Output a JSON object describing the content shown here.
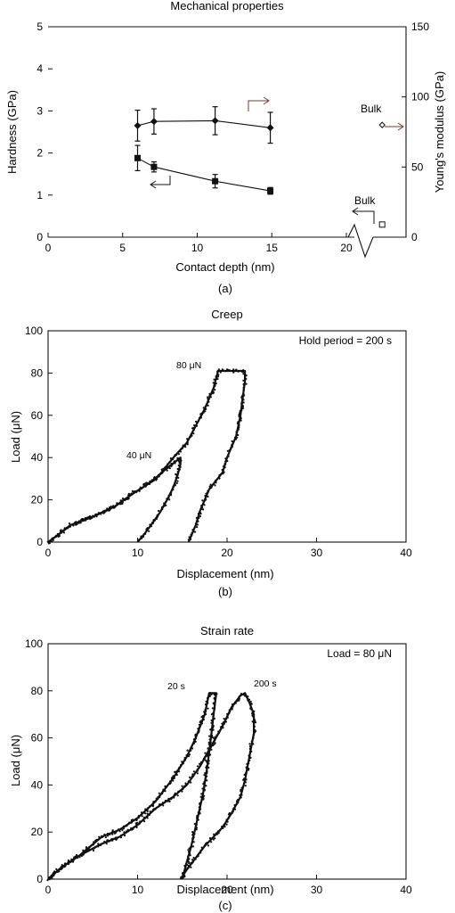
{
  "figure_captions": [
    "(a)",
    "(b)",
    "(c)"
  ],
  "colors": {
    "ink": "#111111",
    "bulk_arrow": "#7a3b2e"
  },
  "chart_data": [
    {
      "type": "scatter",
      "title": "Mechanical properties",
      "xlabel": "Contact depth (nm)",
      "ylabel": "Hardness (GPa)",
      "y2label": "Young's modulus (GPa)",
      "xlim": [
        0,
        24
      ],
      "ylim": [
        0,
        5
      ],
      "y2lim": [
        0,
        150
      ],
      "x_ticks": [
        "0",
        "5",
        "10",
        "15",
        "20"
      ],
      "y_ticks": [
        "0",
        "1",
        "2",
        "3",
        "4",
        "5"
      ],
      "y2_ticks": [
        "0",
        "50",
        "100",
        "150"
      ],
      "axis_break": "x-axis between 20 and 24",
      "series": [
        {
          "name": "",
          "axis": "y2",
          "marker": "diamond",
          "x": [
            6.0,
            7.1,
            11.2,
            14.9
          ],
          "y": [
            79.5,
            82.5,
            83.0,
            78.0
          ],
          "yerr": [
            11,
            9,
            10,
            11
          ]
        },
        {
          "name": "",
          "axis": "y",
          "marker": "square",
          "x": [
            6.0,
            7.1,
            11.2,
            14.9
          ],
          "y": [
            1.88,
            1.67,
            1.33,
            1.1
          ],
          "yerr": [
            0.3,
            0.12,
            0.16,
            0.08
          ]
        }
      ],
      "bulk_points": [
        {
          "label": "Bulk",
          "axis": "y2",
          "marker": "open-diamond",
          "x": 22.4,
          "y": 80
        },
        {
          "label": "Bulk",
          "axis": "y",
          "marker": "open-square",
          "x": 22.4,
          "y": 0.3
        }
      ]
    },
    {
      "type": "scatter",
      "title": "Creep",
      "xlabel": "Displacement (nm)",
      "ylabel": "Load (μN)",
      "xlim": [
        0,
        40
      ],
      "ylim": [
        0,
        100
      ],
      "x_ticks": [
        "0",
        "10",
        "20",
        "30",
        "40"
      ],
      "y_ticks": [
        "0",
        "20",
        "40",
        "60",
        "80",
        "100"
      ],
      "annotation": "Hold period = 200 s",
      "curve_labels": [
        "80 μN",
        "40 μN"
      ],
      "series": [
        {
          "name": "",
          "x": [
            0,
            1,
            2.5,
            5,
            7.5,
            9.5,
            11,
            12.5,
            14,
            15.5,
            16.5,
            17.5,
            18.5,
            19,
            22,
            22,
            21.8,
            21.5,
            21,
            20,
            19.5,
            18,
            17,
            16.5,
            16,
            15.7
          ],
          "y": [
            0,
            3,
            8,
            12,
            17,
            23,
            27,
            32,
            40,
            47,
            55,
            63,
            73,
            81,
            81,
            76,
            70,
            60,
            50,
            40,
            33,
            25,
            15,
            8,
            3,
            0
          ]
        },
        {
          "name": "",
          "x": [
            0,
            1,
            2.5,
            5,
            7.5,
            9.5,
            11,
            12,
            13,
            14.8,
            14.8,
            14.5,
            14,
            13.3,
            12.5,
            11.5,
            10.8,
            10
          ],
          "y": [
            0,
            3,
            8,
            12,
            17,
            23,
            27,
            30,
            34,
            40,
            37,
            32,
            26,
            20,
            14,
            8,
            4,
            0
          ]
        }
      ]
    },
    {
      "type": "scatter",
      "title": "Strain rate",
      "xlabel": "Displacement (nm)",
      "ylabel": "Load (μN)",
      "xlim": [
        0,
        40
      ],
      "ylim": [
        0,
        100
      ],
      "x_ticks": [
        "0",
        "10",
        "20",
        "30",
        "40"
      ],
      "y_ticks": [
        "0",
        "20",
        "40",
        "60",
        "80",
        "100"
      ],
      "annotation": "Load = 80 μN",
      "curve_labels": [
        "20 s",
        "200 s"
      ],
      "series": [
        {
          "name": "",
          "x": [
            0,
            1.5,
            3.5,
            6,
            8,
            10,
            12,
            14,
            15.5,
            17,
            18,
            19.5,
            20.5,
            21.5,
            22,
            22.5,
            23,
            23,
            22.5,
            22,
            21.5,
            20.5,
            19.5,
            18.5,
            17.5,
            16.5,
            15.5,
            14.8
          ],
          "y": [
            0,
            5,
            10,
            15,
            18,
            23,
            30,
            35,
            40,
            48,
            55,
            65,
            73,
            78,
            79,
            75,
            70,
            62,
            52,
            42,
            35,
            28,
            22,
            18,
            14,
            9,
            4,
            0
          ]
        },
        {
          "name": "",
          "x": [
            0,
            1.5,
            3.5,
            6,
            8,
            10,
            12,
            14,
            15.5,
            16.5,
            17.5,
            18,
            18.8,
            18.5,
            18.2,
            17.8,
            17.3,
            16.6,
            16,
            15.4,
            15
          ],
          "y": [
            0,
            5,
            10,
            18,
            21,
            26,
            33,
            43,
            52,
            60,
            70,
            79,
            79,
            70,
            60,
            48,
            36,
            24,
            14,
            6,
            0
          ]
        }
      ]
    }
  ]
}
